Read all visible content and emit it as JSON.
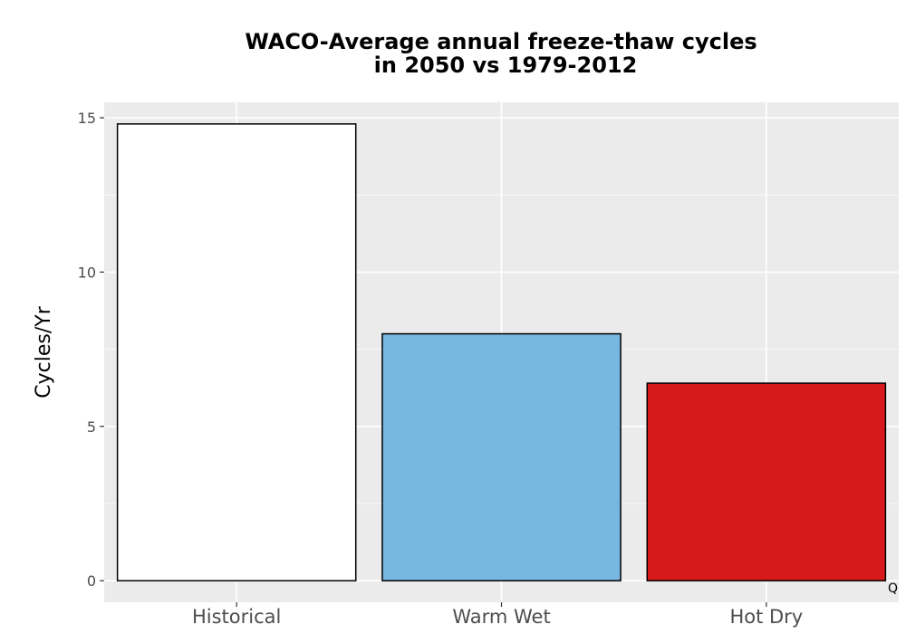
{
  "chart_data": {
    "type": "bar",
    "title_lines": [
      "WACO-Average annual freeze-thaw cycles",
      "in 2050 vs 1979-2012"
    ],
    "xlabel": "",
    "ylabel": "Cycles/Yr",
    "categories": [
      "Historical",
      "Warm Wet",
      "Hot Dry"
    ],
    "values": [
      14.8,
      8.0,
      6.4
    ],
    "colors": [
      "#ffffff",
      "#78b7e0",
      "#d7191c"
    ],
    "ylim": [
      -0.7,
      15.5
    ],
    "yticks": [
      0,
      5,
      10,
      15
    ],
    "ytick_labels": [
      "0",
      "5",
      "10",
      "15"
    ],
    "grid": true,
    "panel_background": "#ebebeb",
    "corner_text": "Q"
  }
}
